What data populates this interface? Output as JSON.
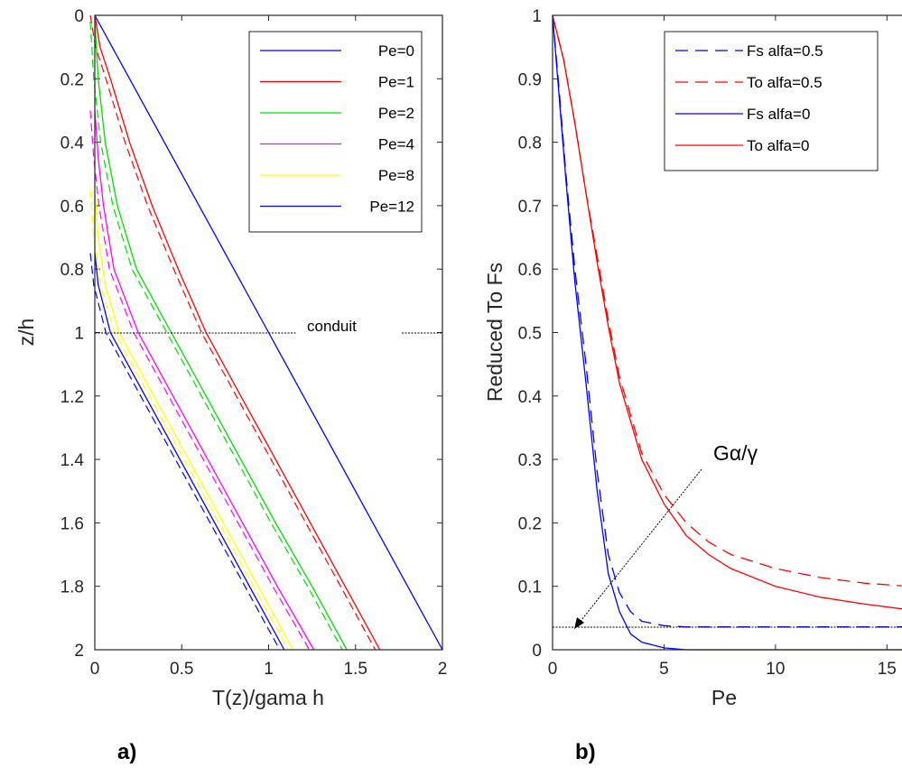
{
  "chart_data": [
    {
      "type": "line",
      "panel_label": "a)",
      "xlabel": "T(z)/gama h",
      "ylabel": "z/h",
      "xlim": [
        0,
        2
      ],
      "ylim": [
        0,
        2
      ],
      "y_reversed": true,
      "x_ticks": [
        "0",
        "0.5",
        "1",
        "1.5",
        "2"
      ],
      "y_ticks": [
        "0",
        "0.2",
        "0.4",
        "0.6",
        "0.8",
        "1",
        "1.2",
        "1.4",
        "1.6",
        "1.8",
        "2"
      ],
      "grid": false,
      "legend_position": "top-right",
      "annotation": {
        "text": "conduit",
        "y": 1
      },
      "series": [
        {
          "name": "Pe=0",
          "color": "#0000ff",
          "style": "solid",
          "points": [
            [
              0,
              0
            ],
            [
              0.2,
              0.2
            ],
            [
              0.4,
              0.4
            ],
            [
              0.6,
              0.6
            ],
            [
              0.8,
              0.8
            ],
            [
              1,
              1
            ],
            [
              1.2,
              1.2
            ],
            [
              1.4,
              1.4
            ],
            [
              1.6,
              1.6
            ],
            [
              1.8,
              1.8
            ],
            [
              2,
              2
            ]
          ]
        },
        {
          "name": "Pe=1",
          "color": "#ff0000",
          "style": "solid",
          "points": [
            [
              0,
              0
            ],
            [
              0.03,
              0.1
            ],
            [
              0.09,
              0.2
            ],
            [
              0.2,
              0.4
            ],
            [
              0.33,
              0.6
            ],
            [
              0.48,
              0.8
            ],
            [
              0.64,
              1
            ],
            [
              0.84,
              1.2
            ],
            [
              1.04,
              1.4
            ],
            [
              1.24,
              1.6
            ],
            [
              1.44,
              1.8
            ],
            [
              1.64,
              2
            ]
          ]
        },
        {
          "name": "Pe=2",
          "color": "#00dd00",
          "style": "solid",
          "points": [
            [
              0,
              0.02
            ],
            [
              0.02,
              0.2
            ],
            [
              0.06,
              0.4
            ],
            [
              0.13,
              0.6
            ],
            [
              0.24,
              0.8
            ],
            [
              0.44,
              1
            ],
            [
              0.64,
              1.2
            ],
            [
              0.84,
              1.4
            ],
            [
              1.04,
              1.6
            ],
            [
              1.25,
              1.8
            ],
            [
              1.45,
              2
            ]
          ]
        },
        {
          "name": "Pe=4",
          "color": "#ff00ff",
          "style": "solid",
          "points": [
            [
              0,
              0.3
            ],
            [
              0.02,
              0.45
            ],
            [
              0.05,
              0.6
            ],
            [
              0.11,
              0.8
            ],
            [
              0.25,
              1
            ],
            [
              0.45,
              1.2
            ],
            [
              0.65,
              1.4
            ],
            [
              0.85,
              1.6
            ],
            [
              1.05,
              1.8
            ],
            [
              1.26,
              2
            ]
          ]
        },
        {
          "name": "Pe=8",
          "color": "#ffff00",
          "style": "solid",
          "points": [
            [
              0,
              0.55
            ],
            [
              0.02,
              0.7
            ],
            [
              0.06,
              0.85
            ],
            [
              0.14,
              1
            ],
            [
              0.34,
              1.2
            ],
            [
              0.54,
              1.4
            ],
            [
              0.74,
              1.6
            ],
            [
              0.94,
              1.8
            ],
            [
              1.14,
              2
            ]
          ]
        },
        {
          "name": "Pe=12",
          "color": "#0000ff",
          "style": "solid",
          "points": [
            [
              0,
              0.75
            ],
            [
              0.02,
              0.85
            ],
            [
              0.09,
              1
            ],
            [
              0.29,
              1.2
            ],
            [
              0.49,
              1.4
            ],
            [
              0.69,
              1.6
            ],
            [
              0.89,
              1.8
            ],
            [
              1.09,
              2
            ]
          ]
        }
      ]
    },
    {
      "type": "line",
      "panel_label": "b)",
      "xlabel": "Pe",
      "ylabel": "Reduced To Fs",
      "xlim": [
        0,
        16
      ],
      "ylim": [
        0,
        1
      ],
      "x_ticks": [
        "0",
        "5",
        "10",
        "15"
      ],
      "y_ticks": [
        "0",
        "0.1",
        "0.2",
        "0.3",
        "0.4",
        "0.5",
        "0.6",
        "0.7",
        "0.8",
        "0.9",
        "1"
      ],
      "grid": false,
      "legend_position": "top-right",
      "annotation": {
        "text": "Gα/γ",
        "y": 0.036
      },
      "series": [
        {
          "name": "Fs alfa=0.5",
          "color": "#0000ff",
          "style": "dashed",
          "points": [
            [
              0,
              1
            ],
            [
              0.3,
              0.88
            ],
            [
              0.6,
              0.75
            ],
            [
              1,
              0.6
            ],
            [
              1.5,
              0.45
            ],
            [
              2,
              0.28
            ],
            [
              2.5,
              0.15
            ],
            [
              3,
              0.09
            ],
            [
              3.5,
              0.06
            ],
            [
              4,
              0.045
            ],
            [
              5,
              0.038
            ],
            [
              6,
              0.036
            ],
            [
              10,
              0.036
            ],
            [
              16,
              0.036
            ]
          ]
        },
        {
          "name": "To alfa=0.5",
          "color": "#ff0000",
          "style": "dashed",
          "points": [
            [
              0,
              1
            ],
            [
              0.5,
              0.93
            ],
            [
              1,
              0.83
            ],
            [
              1.5,
              0.72
            ],
            [
              2,
              0.62
            ],
            [
              2.5,
              0.52
            ],
            [
              3,
              0.43
            ],
            [
              4,
              0.31
            ],
            [
              5,
              0.245
            ],
            [
              6,
              0.2
            ],
            [
              7,
              0.17
            ],
            [
              8,
              0.15
            ],
            [
              10,
              0.128
            ],
            [
              12,
              0.114
            ],
            [
              14,
              0.105
            ],
            [
              16,
              0.1
            ]
          ]
        },
        {
          "name": "Fs alfa=0",
          "color": "#0000ff",
          "style": "solid",
          "points": [
            [
              0,
              1
            ],
            [
              0.3,
              0.87
            ],
            [
              0.6,
              0.74
            ],
            [
              1,
              0.58
            ],
            [
              1.5,
              0.42
            ],
            [
              2,
              0.25
            ],
            [
              2.5,
              0.12
            ],
            [
              3,
              0.06
            ],
            [
              3.5,
              0.025
            ],
            [
              4,
              0.012
            ],
            [
              5,
              0.003
            ],
            [
              6,
              0
            ],
            [
              16,
              0
            ]
          ]
        },
        {
          "name": "To alfa=0",
          "color": "#ff0000",
          "style": "solid",
          "points": [
            [
              0,
              1
            ],
            [
              0.5,
              0.93
            ],
            [
              1,
              0.83
            ],
            [
              1.5,
              0.72
            ],
            [
              2,
              0.61
            ],
            [
              2.5,
              0.51
            ],
            [
              3,
              0.42
            ],
            [
              4,
              0.3
            ],
            [
              5,
              0.23
            ],
            [
              6,
              0.18
            ],
            [
              7,
              0.15
            ],
            [
              8,
              0.128
            ],
            [
              10,
              0.1
            ],
            [
              12,
              0.083
            ],
            [
              14,
              0.072
            ],
            [
              16,
              0.063
            ]
          ]
        }
      ]
    }
  ]
}
